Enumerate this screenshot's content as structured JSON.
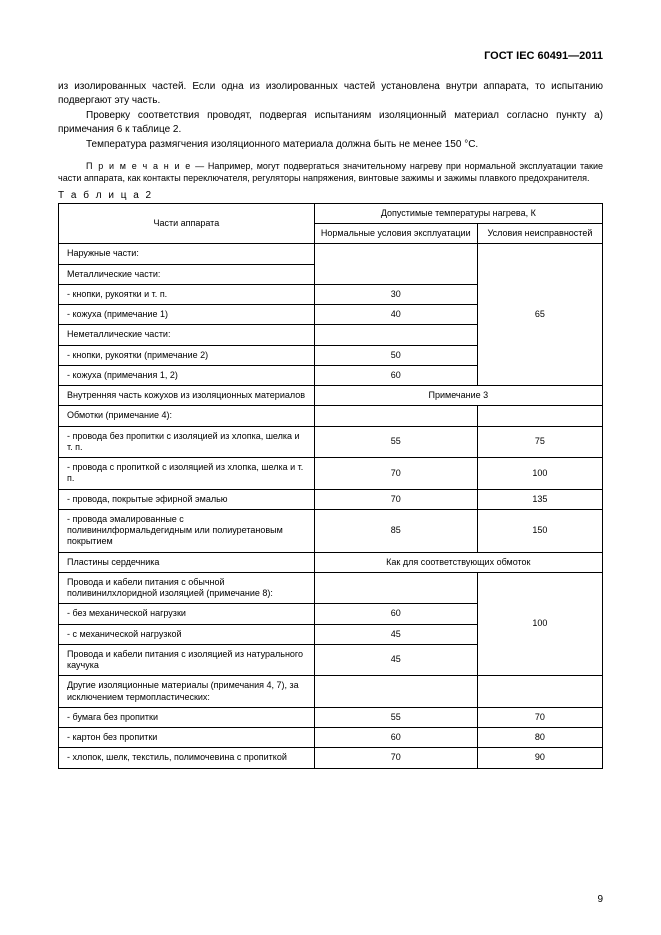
{
  "doc_header": "ГОСТ IEC 60491—2011",
  "para1": "из изолированных частей. Если одна из изолированных частей установлена внутри аппарата, то испытанию подвергают эту часть.",
  "para2": "Проверку соответствия проводят, подвергая испытаниям изоляционный материал согласно пункту а) примечания 6 к таблице 2.",
  "para3": "Температура размягчения изоляционного материала должна быть не менее 150 °С.",
  "note_label": "П р и м е ч а н и е",
  "note_body": " — Например, могут подвергаться значительному нагреву при нормальной эксплуатации такие части аппарата, как контакты переключателя, регуляторы напряжения, винтовые зажимы и зажимы плавкого предохранителя.",
  "table_caption": "Т а б л и ц а  2",
  "table": {
    "col_parts_header": "Части аппарата",
    "col_group_header": "Допустимые температуры нагрева, К",
    "col_norm_header": "Нормальные условия эксплуатации",
    "col_fault_header": "Условия неисправностей",
    "r1": {
      "parts": "Наружные части:"
    },
    "r2": {
      "parts": "Металлические части:"
    },
    "r3": {
      "parts": "- кнопки, рукоятки и т. п.",
      "norm": "30"
    },
    "r4": {
      "parts": "- кожуха (примечание 1)",
      "norm": "40"
    },
    "r5": {
      "parts": "Неметаллические части:",
      "fault_span": "65"
    },
    "r6": {
      "parts": "- кнопки, рукоятки (примечание 2)",
      "norm": "50"
    },
    "r7": {
      "parts": "- кожуха (примечания 1, 2)",
      "norm": "60"
    },
    "r8": {
      "parts": "Внутренняя часть кожухов из изоляционных материалов",
      "merged": "Примечание 3"
    },
    "r9": {
      "parts": "Обмотки (примечание 4):"
    },
    "r10": {
      "parts": "- провода без пропитки с изоляцией из хлопка, шелка и т. п.",
      "norm": "55",
      "fault": "75"
    },
    "r11": {
      "parts": "- провода с пропиткой с изоляцией из хлопка, шелка и т. п.",
      "norm": "70",
      "fault": "100"
    },
    "r12": {
      "parts": "- провода, покрытые эфирной эмалью",
      "norm": "70",
      "fault": "135"
    },
    "r13": {
      "parts": "- провода эмалированные с поливинилформальдегидным или полиуретановым покрытием",
      "norm": "85",
      "fault": "150"
    },
    "r14": {
      "parts": "Пластины сердечника",
      "merged": "Как для соответствующих обмоток"
    },
    "r15": {
      "parts": "Провода и кабели питания с обычной поливинилхлоридной изоляцией (примечание 8):"
    },
    "r16": {
      "parts": "- без механической нагрузки",
      "norm": "60"
    },
    "r17": {
      "parts": "- с механической нагрузкой",
      "norm": "45",
      "fault_span": "100"
    },
    "r18": {
      "parts": "Провода и кабели питания с изоляцией из натурального каучука",
      "norm": "45"
    },
    "r19": {
      "parts": "Другие изоляционные материалы (примечания 4, 7), за исключением термопластических:"
    },
    "r20": {
      "parts": "- бумага без пропитки",
      "norm": "55",
      "fault": "70"
    },
    "r21": {
      "parts": "- картон без пропитки",
      "norm": "60",
      "fault": "80"
    },
    "r22": {
      "parts": "- хлопок, шелк, текстиль, полимочевина с пропиткой",
      "norm": "70",
      "fault": "90"
    }
  },
  "page_number": "9"
}
